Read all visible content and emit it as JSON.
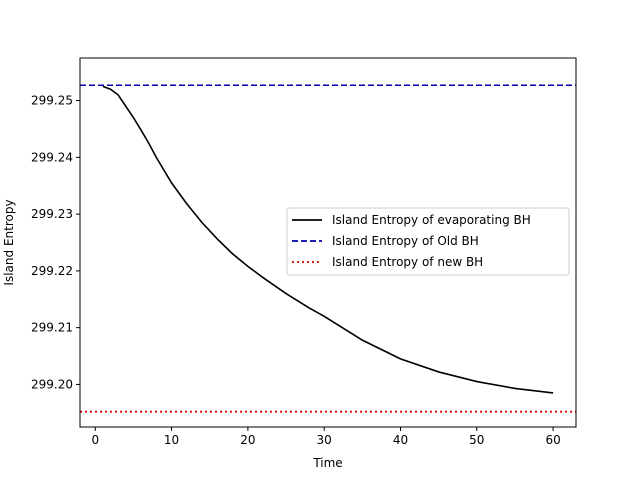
{
  "chart_data": {
    "type": "line",
    "title": "",
    "xlabel": "Time",
    "ylabel": "Island Entropy",
    "xlim": [
      -2,
      63
    ],
    "ylim": [
      299.1925,
      299.2575
    ],
    "xticks": [
      0,
      10,
      20,
      30,
      40,
      50,
      60
    ],
    "yticks": [
      299.2,
      299.21,
      299.22,
      299.23,
      299.24,
      299.25
    ],
    "xtick_labels": [
      "0",
      "10",
      "20",
      "30",
      "40",
      "50",
      "60"
    ],
    "ytick_labels": [
      "299.20",
      "299.21",
      "299.22",
      "299.23",
      "299.24",
      "299.25"
    ],
    "grid": false,
    "legend_position": "center-right",
    "series": [
      {
        "name": "Island Entropy of evaporating BH",
        "style": "solid",
        "color": "#000000",
        "x": [
          1,
          2,
          3,
          4,
          5,
          6,
          7,
          8,
          10,
          12,
          14,
          16,
          18,
          20,
          22,
          25,
          28,
          30,
          35,
          40,
          45,
          50,
          55,
          60
        ],
        "y": [
          299.2525,
          299.252,
          299.251,
          299.249,
          299.247,
          299.2448,
          299.2425,
          299.24,
          299.2355,
          299.2318,
          299.2285,
          299.2256,
          299.223,
          299.2208,
          299.2188,
          299.216,
          299.2135,
          299.212,
          299.2078,
          299.2045,
          299.2022,
          299.2005,
          299.1993,
          299.1985
        ]
      },
      {
        "name": "Island Entropy of Old BH",
        "style": "dashed",
        "color": "#0000aa",
        "x": [
          -2,
          63
        ],
        "y": [
          299.2527,
          299.2527
        ]
      },
      {
        "name": "Island Entropy of new BH",
        "style": "dotted",
        "color": "#dd0000",
        "x": [
          -2,
          63
        ],
        "y": [
          299.1952,
          299.1952
        ]
      }
    ]
  }
}
